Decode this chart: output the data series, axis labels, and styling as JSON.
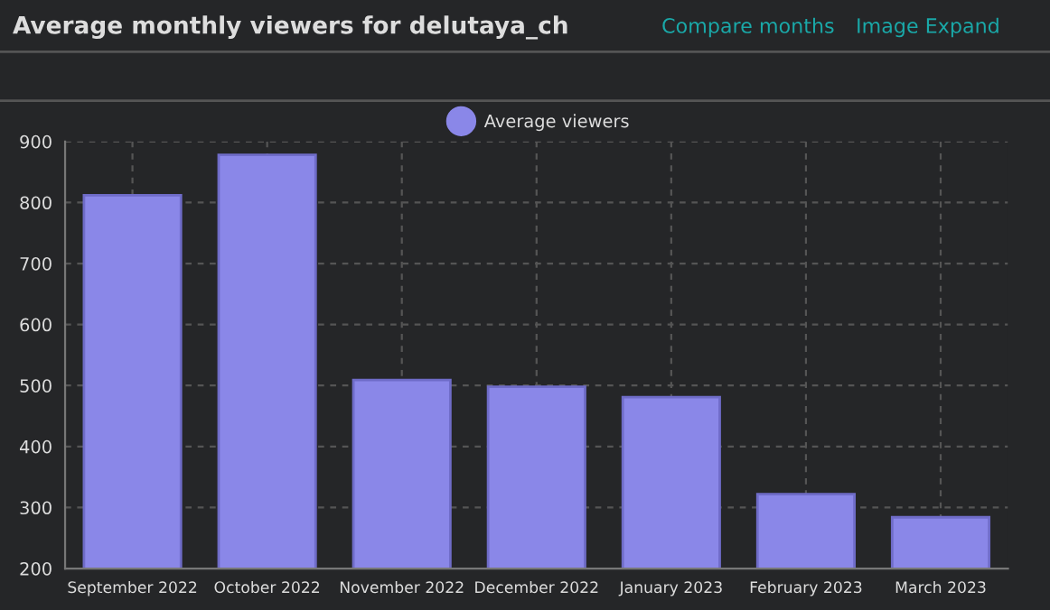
{
  "chart_data": {
    "type": "bar",
    "title": "Average monthly viewers for delutaya_ch",
    "annotations": [
      "Compare months",
      "Image Expand"
    ],
    "categories": [
      "September 2022",
      "October 2022",
      "November 2022",
      "December 2022",
      "January 2023",
      "February 2023",
      "March 2023"
    ],
    "series": [
      {
        "name": "Average viewers",
        "color": "#8a87e8",
        "values": [
          812,
          878,
          509,
          498,
          481,
          322,
          284
        ]
      }
    ],
    "ylim": [
      200,
      900
    ],
    "yticks": [
      200,
      300,
      400,
      500,
      600,
      700,
      800,
      900
    ],
    "grid": true,
    "legend": "top"
  }
}
